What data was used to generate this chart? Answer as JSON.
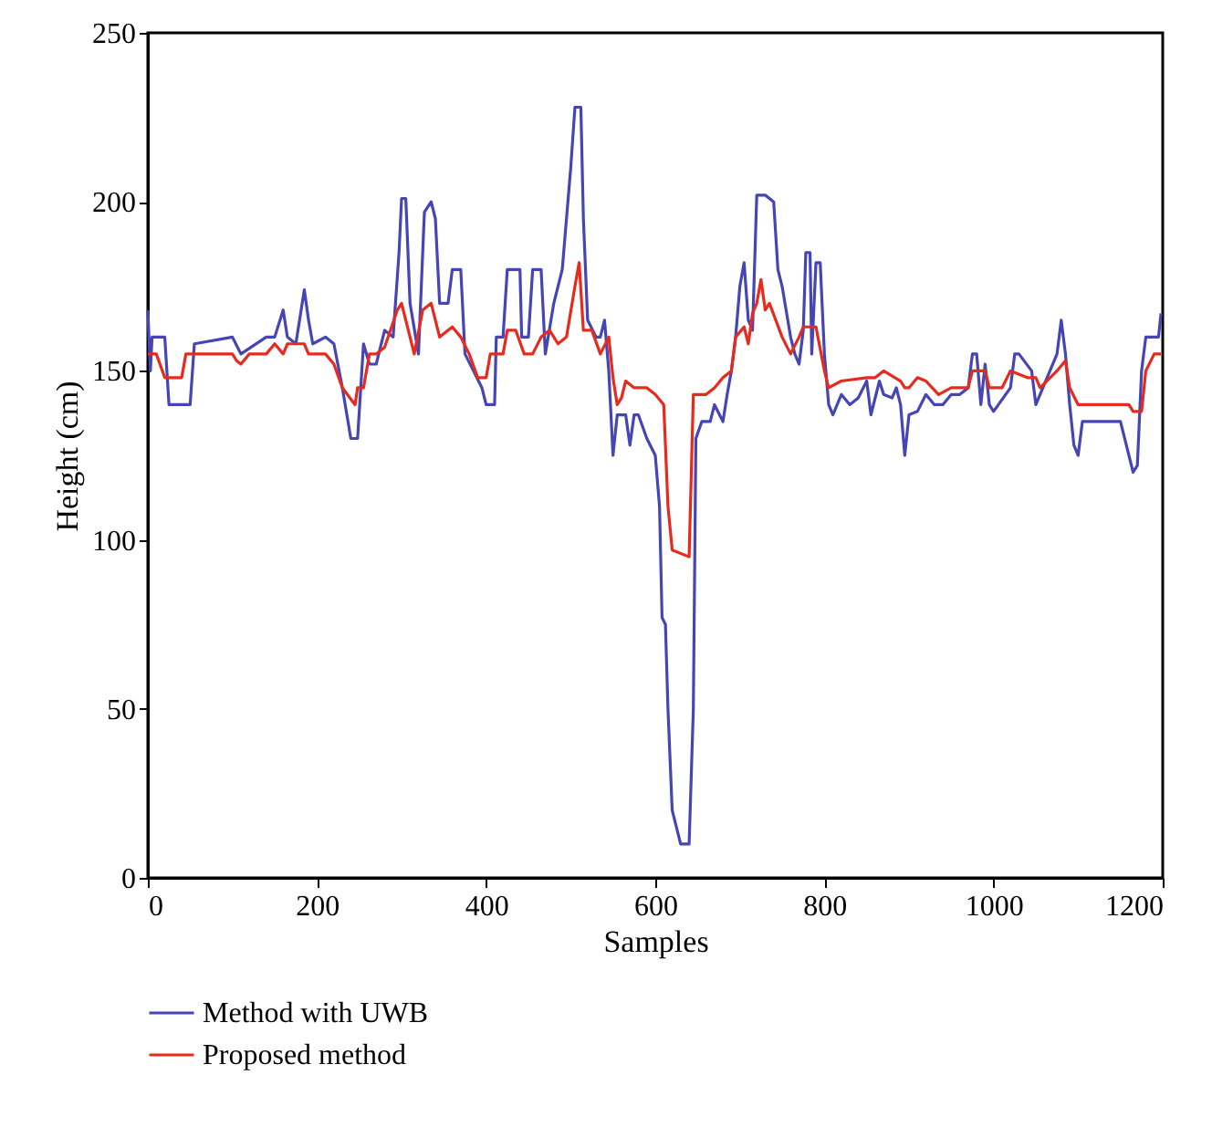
{
  "chart_data": {
    "type": "line",
    "xlabel": "Samples",
    "ylabel": "Height (cm)",
    "xlim": [
      0,
      1200
    ],
    "ylim": [
      0,
      250
    ],
    "xticks": [
      0,
      200,
      400,
      600,
      800,
      1000,
      1200
    ],
    "yticks": [
      0,
      50,
      100,
      150,
      200,
      250
    ],
    "grid": false,
    "legend": "bottom",
    "line_style": "solid",
    "marker": "none",
    "series": [
      {
        "name": "Method with UWB",
        "color": "#4545b5",
        "x": [
          0,
          3,
          5,
          20,
          25,
          50,
          55,
          100,
          110,
          140,
          150,
          160,
          165,
          175,
          185,
          190,
          195,
          210,
          220,
          230,
          240,
          248,
          255,
          262,
          270,
          280,
          290,
          297,
          300,
          305,
          310,
          320,
          327,
          335,
          340,
          345,
          355,
          360,
          370,
          375,
          385,
          395,
          400,
          410,
          412,
          420,
          425,
          440,
          442,
          450,
          455,
          465,
          470,
          480,
          490,
          500,
          505,
          512,
          515,
          520,
          530,
          535,
          540,
          545,
          550,
          555,
          565,
          570,
          575,
          580,
          590,
          600,
          605,
          608,
          612,
          615,
          620,
          625,
          630,
          640,
          645,
          648,
          655,
          665,
          670,
          680,
          685,
          690,
          695,
          700,
          705,
          710,
          715,
          720,
          730,
          740,
          745,
          750,
          760,
          765,
          770,
          775,
          778,
          783,
          785,
          790,
          795,
          800,
          805,
          810,
          820,
          830,
          840,
          850,
          855,
          865,
          870,
          880,
          885,
          890,
          895,
          900,
          910,
          920,
          930,
          940,
          950,
          960,
          970,
          975,
          980,
          985,
          990,
          995,
          1000,
          1020,
          1025,
          1030,
          1045,
          1050,
          1075,
          1080,
          1085,
          1090,
          1095,
          1100,
          1105,
          1110,
          1150,
          1155,
          1165,
          1170,
          1175,
          1180,
          1195,
          1198
        ],
        "values": [
          168,
          150,
          160,
          160,
          140,
          140,
          158,
          160,
          155,
          160,
          160,
          168,
          160,
          158,
          174,
          165,
          158,
          160,
          158,
          145,
          130,
          130,
          158,
          152,
          152,
          162,
          160,
          185,
          201,
          201,
          170,
          155,
          197,
          200,
          195,
          170,
          170,
          180,
          180,
          155,
          150,
          145,
          140,
          140,
          160,
          160,
          180,
          180,
          160,
          160,
          180,
          180,
          155,
          170,
          180,
          210,
          228,
          228,
          195,
          165,
          160,
          160,
          165,
          150,
          125,
          137,
          137,
          128,
          137,
          137,
          130,
          125,
          110,
          77,
          75,
          50,
          20,
          15,
          10,
          10,
          50,
          130,
          135,
          135,
          140,
          135,
          143,
          150,
          160,
          175,
          182,
          165,
          162,
          202,
          202,
          200,
          180,
          175,
          160,
          155,
          152,
          162,
          185,
          185,
          155,
          182,
          182,
          155,
          140,
          137,
          143,
          140,
          142,
          147,
          137,
          147,
          143,
          142,
          145,
          140,
          125,
          137,
          138,
          143,
          140,
          140,
          143,
          143,
          145,
          155,
          155,
          140,
          152,
          140,
          138,
          145,
          155,
          155,
          150,
          140,
          155,
          165,
          155,
          140,
          128,
          125,
          135,
          135,
          135,
          130,
          120,
          122,
          150,
          160,
          160,
          167
        ]
      },
      {
        "name": "Proposed method",
        "color": "#e62b1e",
        "x": [
          0,
          10,
          20,
          40,
          45,
          100,
          105,
          110,
          120,
          140,
          150,
          160,
          165,
          185,
          190,
          210,
          220,
          230,
          245,
          248,
          255,
          262,
          270,
          280,
          295,
          300,
          305,
          315,
          325,
          335,
          345,
          360,
          370,
          380,
          390,
          400,
          405,
          420,
          425,
          435,
          445,
          455,
          465,
          475,
          485,
          495,
          505,
          510,
          515,
          525,
          535,
          545,
          550,
          555,
          560,
          565,
          575,
          590,
          600,
          610,
          615,
          620,
          640,
          645,
          660,
          670,
          680,
          690,
          695,
          705,
          710,
          715,
          720,
          725,
          730,
          735,
          750,
          760,
          770,
          775,
          790,
          800,
          805,
          820,
          850,
          860,
          870,
          890,
          895,
          900,
          910,
          920,
          935,
          950,
          970,
          975,
          990,
          995,
          1010,
          1020,
          1040,
          1050,
          1055,
          1075,
          1085,
          1090,
          1100,
          1120,
          1160,
          1165,
          1175,
          1180,
          1190,
          1198
        ],
        "values": [
          155,
          155,
          148,
          148,
          155,
          155,
          153,
          152,
          155,
          155,
          158,
          155,
          158,
          158,
          155,
          155,
          152,
          145,
          140,
          145,
          145,
          155,
          155,
          157,
          168,
          170,
          165,
          155,
          168,
          170,
          160,
          163,
          160,
          155,
          148,
          148,
          155,
          155,
          162,
          162,
          155,
          155,
          160,
          162,
          158,
          160,
          175,
          182,
          162,
          162,
          155,
          160,
          148,
          140,
          142,
          147,
          145,
          145,
          143,
          140,
          110,
          97,
          95,
          143,
          143,
          145,
          148,
          150,
          160,
          163,
          158,
          167,
          170,
          177,
          168,
          170,
          160,
          155,
          160,
          163,
          163,
          150,
          145,
          147,
          148,
          148,
          150,
          147,
          145,
          145,
          148,
          147,
          143,
          145,
          145,
          150,
          150,
          145,
          145,
          150,
          148,
          148,
          145,
          150,
          153,
          145,
          140,
          140,
          140,
          138,
          138,
          150,
          155,
          155
        ]
      }
    ]
  }
}
